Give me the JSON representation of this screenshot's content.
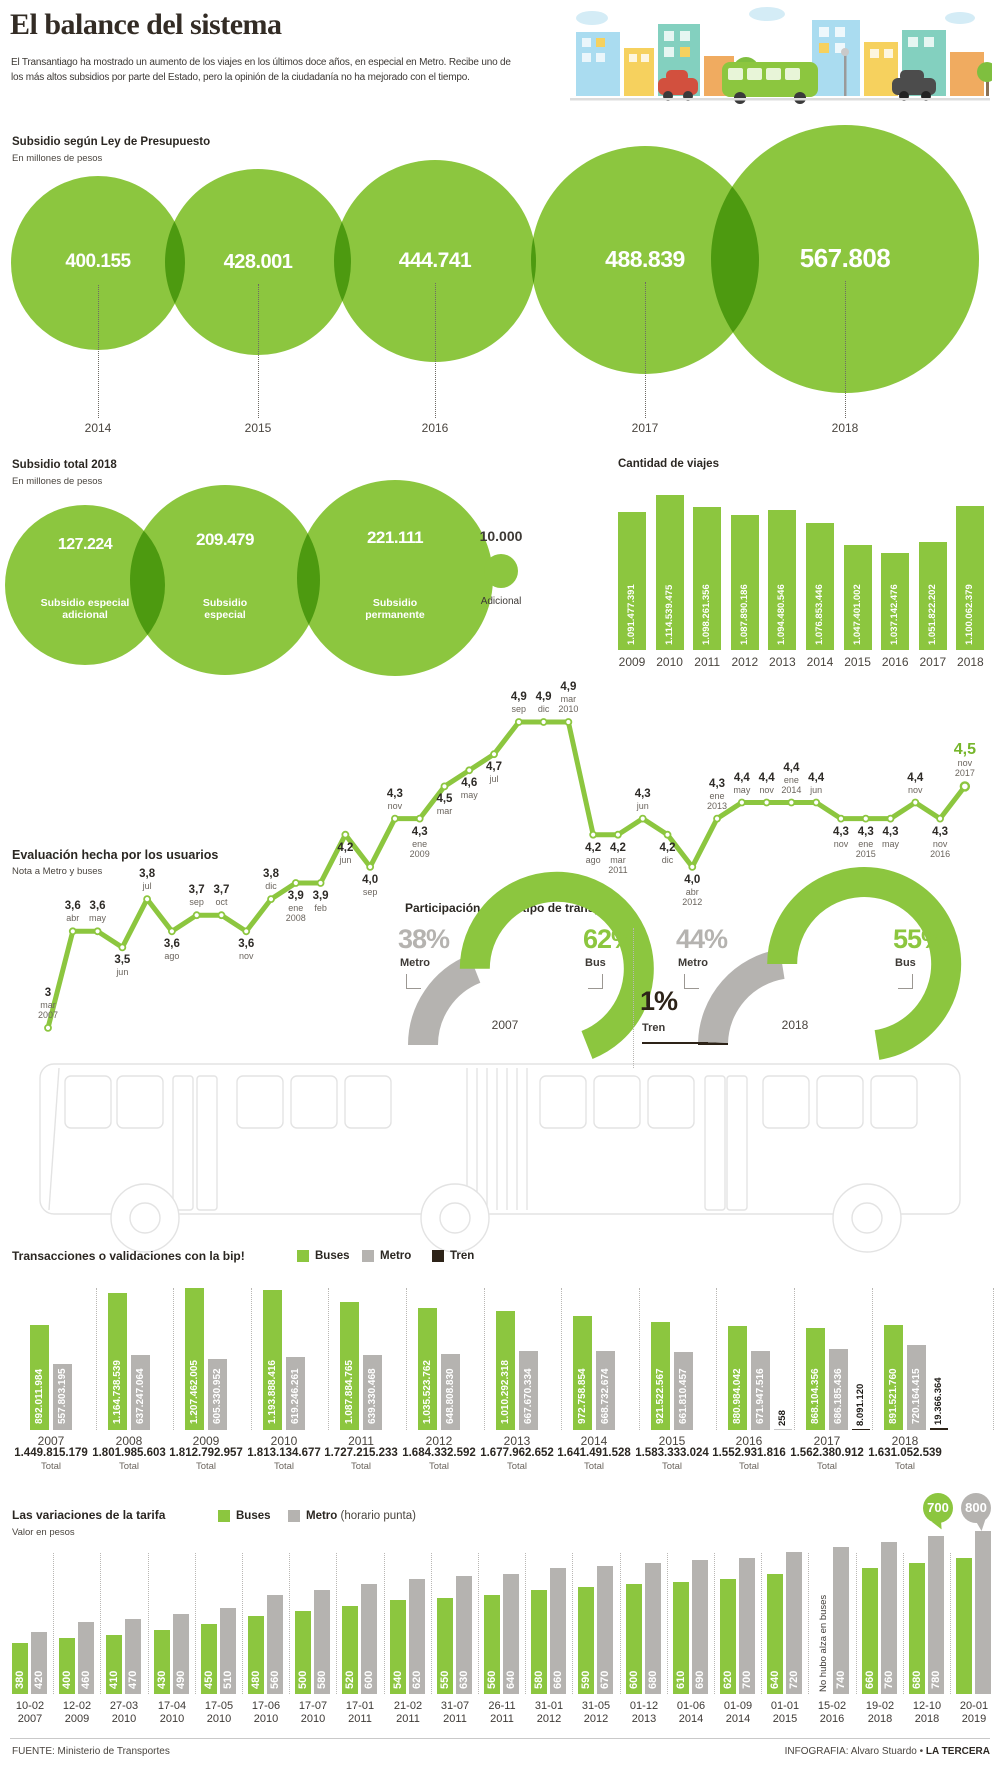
{
  "colors": {
    "green": "#8cc63f",
    "green_dark": "#76b62b",
    "gray": "#b5b3b0",
    "dark": "#2d2318",
    "text": "#3d3935",
    "muted": "#6b655e"
  },
  "header": {
    "title": "El balance del sistema",
    "intro_lines": [
      "El Transantiago ha mostrado un aumento de los viajes en los últimos doce años, en especial en Metro. Recibe uno de",
      "los más altos subsidios por parte del Estado, pero la opinión de la ciudadanía no ha mejorado con el tiempo."
    ]
  },
  "illustrations": {
    "cityscape": "city-buildings-bus-cars-trees-illustration",
    "bus": "articulated-bus-outline-illustration"
  },
  "chart_data": [
    {
      "id": "subsidio_ley_presupuesto",
      "type": "bubble",
      "title": "Subsidio según Ley de Presupuesto",
      "subtitle": "En millones de pesos",
      "categories": [
        "2014",
        "2015",
        "2016",
        "2017",
        "2018"
      ],
      "values": [
        400155,
        428001,
        444741,
        488839,
        567808
      ],
      "labels": [
        "400.155",
        "428.001",
        "444.741",
        "488.839",
        "567.808"
      ]
    },
    {
      "id": "subsidio_total_2018",
      "type": "bubble",
      "title": "Subsidio total 2018",
      "subtitle": "En millones de pesos",
      "items": [
        {
          "label": "127.224",
          "value": 127224,
          "name": [
            "Subsidio especial",
            "adicional"
          ]
        },
        {
          "label": "209.479",
          "value": 209479,
          "name": [
            "Subsidio",
            "especial"
          ]
        },
        {
          "label": "221.111",
          "value": 221111,
          "name": [
            "Subsidio",
            "permanente"
          ]
        },
        {
          "label": "10.000",
          "value": 10000,
          "name": [
            "Adicional"
          ],
          "small": true
        }
      ]
    },
    {
      "id": "cantidad_viajes",
      "type": "bar",
      "title": "Cantidad de viajes",
      "categories": [
        "2009",
        "2010",
        "2011",
        "2012",
        "2013",
        "2014",
        "2015",
        "2016",
        "2017",
        "2018"
      ],
      "values": [
        1091477391,
        1114539475,
        1098261356,
        1087890186,
        1094480546,
        1076853446,
        1047401002,
        1037142476,
        1051822202,
        1100062379
      ],
      "labels": [
        "1.091.477.391",
        "1.114.539.475",
        "1.098.261.356",
        "1.087.890.186",
        "1.094.480.546",
        "1.076.853.446",
        "1.047.401.002",
        "1.037.142.476",
        "1.051.822.202",
        "1.100.062.379"
      ]
    },
    {
      "id": "evaluacion_usuarios",
      "type": "line",
      "title": "Evaluación hecha por los usuarios",
      "subtitle": "Nota a Metro y buses",
      "ylim": [
        3,
        4.9
      ],
      "points": [
        {
          "v": 3,
          "label": "3",
          "sub": [
            "mar",
            "2007"
          ],
          "pos": "above"
        },
        {
          "v": 3.6,
          "label": "3,6",
          "sub": [
            "abr"
          ],
          "pos": "above"
        },
        {
          "v": 3.6,
          "label": "3,6",
          "sub": [
            "may"
          ],
          "pos": "above"
        },
        {
          "v": 3.5,
          "label": "3,5",
          "sub": [
            "jun"
          ],
          "pos": "below"
        },
        {
          "v": 3.8,
          "label": "3,8",
          "sub": [
            "jul"
          ],
          "pos": "above"
        },
        {
          "v": 3.6,
          "label": "3,6",
          "sub": [
            "ago"
          ],
          "pos": "below"
        },
        {
          "v": 3.7,
          "label": "3,7",
          "sub": [
            "sep"
          ],
          "pos": "above"
        },
        {
          "v": 3.7,
          "label": "3,7",
          "sub": [
            "oct"
          ],
          "pos": "above"
        },
        {
          "v": 3.6,
          "label": "3,6",
          "sub": [
            "nov"
          ],
          "pos": "below"
        },
        {
          "v": 3.8,
          "label": "3,8",
          "sub": [
            "dic"
          ],
          "pos": "above"
        },
        {
          "v": 3.9,
          "label": "3,9",
          "sub": [
            "ene",
            "2008"
          ],
          "pos": "below"
        },
        {
          "v": 3.9,
          "label": "3,9",
          "sub": [
            "feb"
          ],
          "pos": "below"
        },
        {
          "v": 4.2,
          "label": "4,2",
          "sub": [
            "jun"
          ],
          "pos": "below"
        },
        {
          "v": 4.0,
          "label": "4,0",
          "sub": [
            "sep"
          ],
          "pos": "below"
        },
        {
          "v": 4.3,
          "label": "4,3",
          "sub": [
            "nov"
          ],
          "pos": "above"
        },
        {
          "v": 4.3,
          "label": "4,3",
          "sub": [
            "ene",
            "2009"
          ],
          "pos": "below"
        },
        {
          "v": 4.5,
          "label": "4,5",
          "sub": [
            "mar"
          ],
          "pos": "below"
        },
        {
          "v": 4.6,
          "label": "4,6",
          "sub": [
            "may"
          ],
          "pos": "below"
        },
        {
          "v": 4.7,
          "label": "4,7",
          "sub": [
            "jul"
          ],
          "pos": "below"
        },
        {
          "v": 4.9,
          "label": "4,9",
          "sub": [
            "sep"
          ],
          "pos": "above"
        },
        {
          "v": 4.9,
          "label": "4,9",
          "sub": [
            "dic"
          ],
          "pos": "above"
        },
        {
          "v": 4.9,
          "label": "4,9",
          "sub": [
            "mar",
            "2010"
          ],
          "pos": "above"
        },
        {
          "v": 4.2,
          "label": "4,2",
          "sub": [
            "ago"
          ],
          "pos": "below"
        },
        {
          "v": 4.2,
          "label": "4,2",
          "sub": [
            "mar",
            "2011"
          ],
          "pos": "below"
        },
        {
          "v": 4.3,
          "label": "4,3",
          "sub": [
            "jun"
          ],
          "pos": "above"
        },
        {
          "v": 4.2,
          "label": "4,2",
          "sub": [
            "dic"
          ],
          "pos": "below"
        },
        {
          "v": 4.0,
          "label": "4,0",
          "sub": [
            "abr",
            "2012"
          ],
          "pos": "below"
        },
        {
          "v": 4.3,
          "label": "4,3",
          "sub": [
            "ene",
            "2013"
          ],
          "pos": "above"
        },
        {
          "v": 4.4,
          "label": "4,4",
          "sub": [
            "may"
          ],
          "pos": "above"
        },
        {
          "v": 4.4,
          "label": "4,4",
          "sub": [
            "nov"
          ],
          "pos": "above"
        },
        {
          "v": 4.4,
          "label": "4,4",
          "sub": [
            "ene",
            "2014"
          ],
          "pos": "above"
        },
        {
          "v": 4.4,
          "label": "4,4",
          "sub": [
            "jun"
          ],
          "pos": "above"
        },
        {
          "v": 4.3,
          "label": "4,3",
          "sub": [
            "nov"
          ],
          "pos": "below"
        },
        {
          "v": 4.3,
          "label": "4,3",
          "sub": [
            "ene",
            "2015"
          ],
          "pos": "below"
        },
        {
          "v": 4.3,
          "label": "4,3",
          "sub": [
            "may"
          ],
          "pos": "below"
        },
        {
          "v": 4.4,
          "label": "4,4",
          "sub": [
            "nov"
          ],
          "pos": "above"
        },
        {
          "v": 4.3,
          "label": "4,3",
          "sub": [
            "nov",
            "2016"
          ],
          "pos": "below"
        },
        {
          "v": 4.5,
          "label": "4,5",
          "sub": [
            "nov",
            "2017"
          ],
          "pos": "above",
          "highlight": true
        }
      ]
    },
    {
      "id": "participacion_transporte",
      "type": "pie",
      "title": "Participación según tipo de transporte",
      "charts": [
        {
          "year": "2007",
          "slices": [
            {
              "name": "Metro",
              "pct": 38
            },
            {
              "name": "Bus",
              "pct": 62
            }
          ]
        },
        {
          "year": "2018",
          "slices": [
            {
              "name": "Tren",
              "pct": 1
            },
            {
              "name": "Metro",
              "pct": 44
            },
            {
              "name": "Bus",
              "pct": 55
            }
          ]
        }
      ]
    },
    {
      "id": "transacciones_bip",
      "type": "bar",
      "title": "Transacciones o validaciones con la bip!",
      "years": [
        "2007",
        "2008",
        "2009",
        "2010",
        "2011",
        "2012",
        "2013",
        "2014",
        "2015",
        "2016",
        "2017",
        "2018"
      ],
      "series": [
        {
          "name": "Buses",
          "labels": [
            "892.011.984",
            "1.164.738.539",
            "1.207.462.005",
            "1.193.888.416",
            "1.087.884.765",
            "1.035.523.762",
            "1.010.292.318",
            "972.758.854",
            "921.522.567",
            "880.984.042",
            "868.104.356",
            "891.521.760"
          ],
          "values": [
            892011984,
            1164738539,
            1207462005,
            1193888416,
            1087884765,
            1035523762,
            1010292318,
            972758854,
            921522567,
            880984042,
            868104356,
            891521760
          ]
        },
        {
          "name": "Metro",
          "labels": [
            "557.803.195",
            "637.247.064",
            "605.330.952",
            "619.246.261",
            "639.330.468",
            "648.808.830",
            "667.670.334",
            "668.732.674",
            "661.810.457",
            "671.947.516",
            "686.185.436",
            "720.164.415"
          ],
          "values": [
            557803195,
            637247064,
            605330952,
            619246261,
            639330468,
            648808830,
            667670334,
            668732674,
            661810457,
            671947516,
            686185436,
            720164415
          ]
        },
        {
          "name": "Tren",
          "labels": [
            null,
            null,
            null,
            null,
            null,
            null,
            null,
            null,
            null,
            "258",
            "8.091.120",
            "19.366.364"
          ],
          "values": [
            null,
            null,
            null,
            null,
            null,
            null,
            null,
            null,
            null,
            258,
            8091120,
            19366364
          ]
        }
      ],
      "totals": [
        "1.449.815.179",
        "1.801.985.603",
        "1.812.792.957",
        "1.813.134.677",
        "1.727.215.233",
        "1.684.332.592",
        "1.677.962.652",
        "1.641.491.528",
        "1.583.333.024",
        "1.552.931.816",
        "1.562.380.912",
        "1.631.052.539"
      ],
      "total_label": "Total"
    },
    {
      "id": "variaciones_tarifa",
      "type": "bar",
      "title": "Las variaciones de la tarifa",
      "subtitle": "Valor en pesos",
      "dates": [
        [
          "10-02",
          "2007"
        ],
        [
          "12-02",
          "2009"
        ],
        [
          "27-03",
          "2010"
        ],
        [
          "17-04",
          "2010"
        ],
        [
          "17-05",
          "2010"
        ],
        [
          "17-06",
          "2010"
        ],
        [
          "17-07",
          "2010"
        ],
        [
          "17-01",
          "2011"
        ],
        [
          "21-02",
          "2011"
        ],
        [
          "31-07",
          "2011"
        ],
        [
          "26-11",
          "2011"
        ],
        [
          "31-01",
          "2012"
        ],
        [
          "31-05",
          "2012"
        ],
        [
          "01-12",
          "2013"
        ],
        [
          "01-06",
          "2014"
        ],
        [
          "01-09",
          "2014"
        ],
        [
          "01-01",
          "2015"
        ],
        [
          "15-02",
          "2016"
        ],
        [
          "19-02",
          "2018"
        ],
        [
          "12-10",
          "2018"
        ],
        [
          "20-01",
          "2019"
        ]
      ],
      "series": [
        {
          "name": "Buses",
          "values": [
            380,
            400,
            410,
            430,
            450,
            480,
            500,
            520,
            540,
            550,
            560,
            580,
            590,
            600,
            610,
            620,
            640,
            null,
            660,
            680,
            700
          ]
        },
        {
          "name": "Metro",
          "note": "(horario punta)",
          "values": [
            420,
            460,
            470,
            490,
            510,
            560,
            580,
            600,
            620,
            630,
            640,
            660,
            670,
            680,
            690,
            700,
            720,
            740,
            760,
            780,
            800
          ]
        }
      ],
      "no_rise_note": "No hubo alza en buses",
      "callout": {
        "bus": "700",
        "metro": "800"
      }
    }
  ],
  "footer": {
    "source": "FUENTE: Ministerio de Transportes",
    "credit_prefix": "INFOGRAFIA: Alvaro Stuardo",
    "credit_brand": "LA TERCERA"
  }
}
